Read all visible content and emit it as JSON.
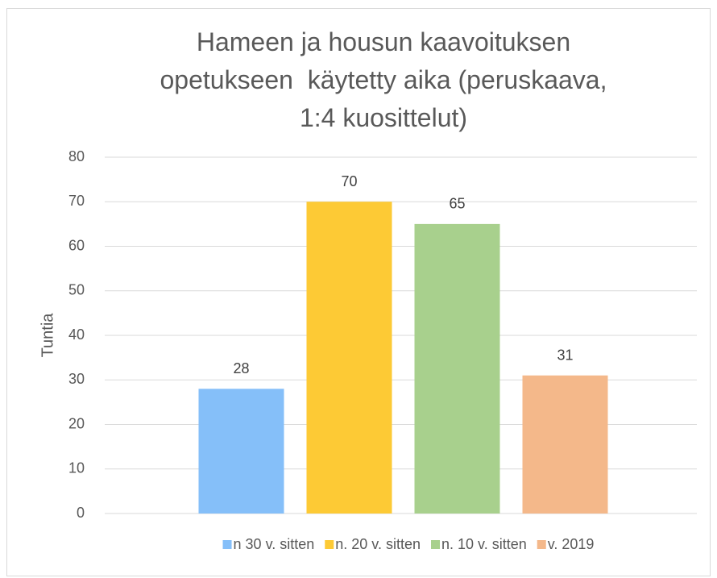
{
  "chart_data": {
    "type": "bar",
    "title": "Hameen ja housun kaavoituksen\nopetukseen  käytetty aika (peruskaava,\n1:4 kuosittelut)",
    "y_label": "Tuntia",
    "categories": [
      null
    ],
    "series": [
      {
        "name": "n 30 v. sitten",
        "color": "#85bff9",
        "values": [
          28
        ]
      },
      {
        "name": "n. 20 v. sitten",
        "color": "#fdca35",
        "values": [
          70
        ]
      },
      {
        "name": "n. 10 v. sitten",
        "color": "#a8d08d",
        "values": [
          65
        ]
      },
      {
        "name": "v. 2019",
        "color": "#f4b88a",
        "values": [
          31
        ]
      }
    ],
    "ylim": [
      0,
      80
    ],
    "yticks": [
      0,
      10,
      20,
      30,
      40,
      50,
      60,
      70,
      80
    ],
    "grid": true,
    "legend": "bottom"
  }
}
